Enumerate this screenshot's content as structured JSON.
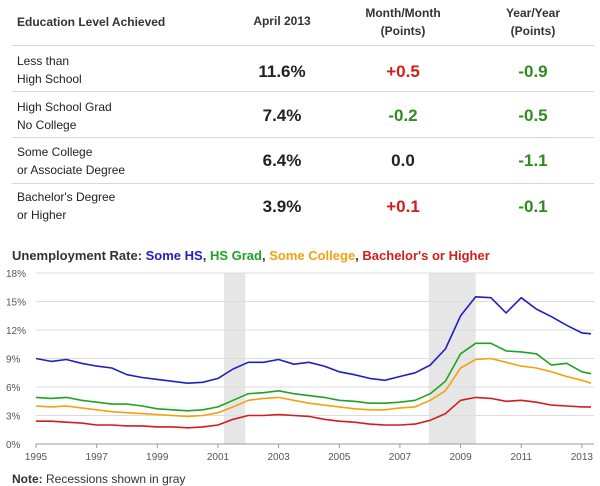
{
  "table": {
    "headers": {
      "education": "Education Level Achieved",
      "april": "April 2013",
      "mom_line1": "Month/Month",
      "mom_line2": "(Points)",
      "yoy_line1": "Year/Year",
      "yoy_line2": "(Points)"
    },
    "rows": [
      {
        "line1": "Less than",
        "line2": "High School",
        "rate": "11.6%",
        "mom": "+0.5",
        "yoy": "-0.9"
      },
      {
        "line1": "High School Grad",
        "line2": "No College",
        "rate": "7.4%",
        "mom": "-0.2",
        "yoy": "-0.5"
      },
      {
        "line1": "Some College",
        "line2": "or Associate Degree",
        "rate": "6.4%",
        "mom": "0.0",
        "yoy": "-1.1"
      },
      {
        "line1": "Bachelor's Degree",
        "line2": "or Higher",
        "rate": "3.9%",
        "mom": "+0.1",
        "yoy": "-0.1"
      }
    ],
    "colors": {
      "positive": "#d21d1d",
      "negative": "#2e8b1e",
      "neutral": "#222222"
    }
  },
  "chart_title": {
    "prefix": "Unemployment Rate: ",
    "s1": "Some HS",
    "sep1": ", ",
    "s2": "HS Grad",
    "sep2": ", ",
    "s3": "Some College",
    "sep3": ", ",
    "s4": "Bachelor's or Higher"
  },
  "note": {
    "label": "Note:",
    "text": " Recessions shown in gray"
  },
  "chart_data": {
    "type": "line",
    "xlim": [
      1995,
      2013.4
    ],
    "ylim": [
      0,
      18
    ],
    "y_ticks": [
      0,
      3,
      6,
      9,
      12,
      15,
      18
    ],
    "y_tick_labels": [
      "0%",
      "3%",
      "6%",
      "9%",
      "12%",
      "15%",
      "18%"
    ],
    "x_ticks": [
      1995,
      1997,
      1999,
      2001,
      2003,
      2005,
      2007,
      2009,
      2011,
      2013
    ],
    "x_tick_labels": [
      "1995",
      "1997",
      "1999",
      "2001",
      "2003",
      "2005",
      "2007",
      "2009",
      "2011",
      "2013"
    ],
    "grid": "horizontal",
    "recessions": [
      [
        2001.2,
        2001.9
      ],
      [
        2007.95,
        2009.5
      ]
    ],
    "x": [
      1995,
      1995.5,
      1996,
      1996.5,
      1997,
      1997.5,
      1998,
      1998.5,
      1999,
      1999.5,
      2000,
      2000.5,
      2001,
      2001.5,
      2002,
      2002.5,
      2003,
      2003.5,
      2004,
      2004.5,
      2005,
      2005.5,
      2006,
      2006.5,
      2007,
      2007.5,
      2008,
      2008.5,
      2009,
      2009.5,
      2010,
      2010.5,
      2011,
      2011.5,
      2012,
      2012.5,
      2013,
      2013.3
    ],
    "series": [
      {
        "name": "Some HS",
        "color": "#1f1fc4",
        "values": [
          9.0,
          8.7,
          8.9,
          8.5,
          8.2,
          8.0,
          7.3,
          7.0,
          6.8,
          6.6,
          6.4,
          6.5,
          6.9,
          7.9,
          8.6,
          8.6,
          8.9,
          8.4,
          8.6,
          8.2,
          7.6,
          7.3,
          6.9,
          6.7,
          7.1,
          7.5,
          8.3,
          10.0,
          13.5,
          15.5,
          15.4,
          13.8,
          15.4,
          14.2,
          13.4,
          12.5,
          11.7,
          11.6
        ]
      },
      {
        "name": "HS Grad",
        "color": "#1fa41f",
        "values": [
          4.9,
          4.8,
          4.9,
          4.6,
          4.4,
          4.2,
          4.2,
          4.0,
          3.7,
          3.6,
          3.5,
          3.6,
          3.9,
          4.6,
          5.3,
          5.4,
          5.6,
          5.3,
          5.1,
          4.9,
          4.6,
          4.5,
          4.3,
          4.3,
          4.4,
          4.6,
          5.3,
          6.6,
          9.5,
          10.6,
          10.6,
          9.8,
          9.7,
          9.5,
          8.3,
          8.5,
          7.6,
          7.4
        ]
      },
      {
        "name": "Some College",
        "color": "#f5a00f",
        "values": [
          4.0,
          3.9,
          4.0,
          3.8,
          3.6,
          3.4,
          3.3,
          3.2,
          3.1,
          3.0,
          2.9,
          3.0,
          3.3,
          3.9,
          4.6,
          4.8,
          4.9,
          4.6,
          4.3,
          4.1,
          3.9,
          3.7,
          3.6,
          3.6,
          3.8,
          3.9,
          4.6,
          5.6,
          8.0,
          8.9,
          9.0,
          8.6,
          8.2,
          8.0,
          7.6,
          7.1,
          6.7,
          6.4
        ]
      },
      {
        "name": "Bachelor's or Higher",
        "color": "#d21d1d",
        "values": [
          2.4,
          2.4,
          2.3,
          2.2,
          2.0,
          2.0,
          1.9,
          1.9,
          1.8,
          1.8,
          1.7,
          1.8,
          2.0,
          2.6,
          3.0,
          3.0,
          3.1,
          3.0,
          2.9,
          2.6,
          2.4,
          2.3,
          2.1,
          2.0,
          2.0,
          2.1,
          2.5,
          3.2,
          4.6,
          4.9,
          4.8,
          4.5,
          4.6,
          4.4,
          4.1,
          4.0,
          3.9,
          3.9
        ]
      }
    ]
  }
}
